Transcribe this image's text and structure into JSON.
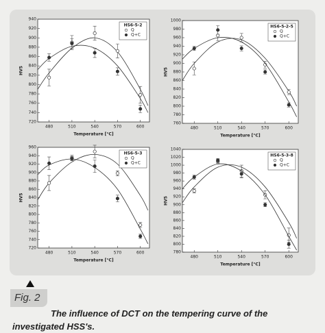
{
  "chart_data": [
    {
      "type": "scatter",
      "title": "HS6-5-2",
      "x_label": "Temperature [°C]",
      "y_label": "HV5",
      "x": [
        480,
        510,
        540,
        570,
        600
      ],
      "xlim": [
        465,
        612
      ],
      "xticks": [
        480,
        510,
        540,
        570,
        600
      ],
      "ylim": [
        720,
        940
      ],
      "yticks": [
        720,
        740,
        760,
        780,
        800,
        820,
        840,
        860,
        880,
        900,
        920,
        940
      ],
      "legend": "upper right",
      "series": [
        {
          "name": "Q",
          "color": "#333333",
          "marker": "open",
          "values": [
            815,
            890,
            910,
            872,
            778
          ],
          "errors": [
            18,
            15,
            15,
            15,
            18
          ],
          "fit": {
            "x": [
              465,
              480,
              510,
              540,
              570,
              600,
              610
            ],
            "values": [
              790,
              825,
              878,
              900,
              870,
              790,
              755
            ]
          }
        },
        {
          "name": "Q+C",
          "color": "#333333",
          "marker": "filled",
          "values": [
            858,
            888,
            868,
            828,
            748
          ],
          "errors": [
            8,
            10,
            10,
            8,
            8
          ],
          "fit": {
            "x": [
              465,
              480,
              510,
              540,
              570,
              600,
              610
            ],
            "values": [
              832,
              856,
              882,
              878,
              840,
              770,
              740
            ]
          }
        }
      ]
    },
    {
      "type": "scatter",
      "title": "HS6-5-2-5",
      "x_label": "Temperature [°C]",
      "y_label": "HV5",
      "x": [
        480,
        510,
        540,
        570,
        600
      ],
      "xlim": [
        465,
        612
      ],
      "xticks": [
        480,
        510,
        540,
        570,
        600
      ],
      "ylim": [
        760,
        1000
      ],
      "yticks": [
        760,
        780,
        800,
        820,
        840,
        860,
        880,
        900,
        920,
        940,
        960,
        980,
        1000
      ],
      "legend": "upper right",
      "series": [
        {
          "name": "Q",
          "color": "#333333",
          "marker": "open",
          "values": [
            888,
            965,
            960,
            897,
            833
          ],
          "errors": [
            15,
            12,
            10,
            8,
            6
          ],
          "fit": {
            "x": [
              465,
              480,
              510,
              540,
              570,
              600,
              610
            ],
            "values": [
              860,
              900,
              950,
              955,
              912,
              835,
              800
            ]
          }
        },
        {
          "name": "Q+C",
          "color": "#333333",
          "marker": "filled",
          "values": [
            935,
            978,
            935,
            880,
            803
          ],
          "errors": [
            5,
            10,
            6,
            5,
            5
          ],
          "fit": {
            "x": [
              465,
              480,
              510,
              540,
              570,
              600,
              610
            ],
            "values": [
              910,
              935,
              960,
              950,
              900,
              810,
              775
            ]
          }
        }
      ]
    },
    {
      "type": "scatter",
      "title": "HS6-5-3",
      "x_label": "Temperature [°C]",
      "y_label": "HV5",
      "x": [
        480,
        510,
        540,
        570,
        600
      ],
      "xlim": [
        465,
        612
      ],
      "xticks": [
        480,
        510,
        540,
        570,
        600
      ],
      "ylim": [
        720,
        960
      ],
      "yticks": [
        720,
        740,
        760,
        780,
        800,
        820,
        840,
        860,
        880,
        900,
        920,
        940,
        960
      ],
      "legend": "upper right",
      "series": [
        {
          "name": "Q",
          "color": "#333333",
          "marker": "open",
          "values": [
            875,
            935,
            950,
            898,
            775
          ],
          "errors": [
            18,
            6,
            15,
            6,
            6
          ],
          "fit": {
            "x": [
              465,
              480,
              510,
              540,
              570,
              600,
              610
            ],
            "values": [
              835,
              875,
              925,
              943,
              920,
              845,
              810
            ]
          }
        },
        {
          "name": "Q+C",
          "color": "#333333",
          "marker": "filled",
          "values": [
            922,
            933,
            915,
            838,
            748
          ],
          "errors": [
            15,
            5,
            15,
            8,
            5
          ],
          "fit": {
            "x": [
              465,
              480,
              510,
              540,
              570,
              600,
              610
            ],
            "values": [
              895,
              918,
              932,
              912,
              860,
              765,
              730
            ]
          }
        }
      ]
    },
    {
      "type": "scatter",
      "title": "HS6-5-3-8",
      "x_label": "Temperature [°C]",
      "y_label": "HV5",
      "x": [
        480,
        510,
        540,
        570,
        600
      ],
      "xlim": [
        465,
        612
      ],
      "xticks": [
        480,
        510,
        540,
        570,
        600
      ],
      "ylim": [
        780,
        1040
      ],
      "yticks": [
        780,
        800,
        820,
        840,
        860,
        880,
        900,
        920,
        940,
        960,
        980,
        1000,
        1020,
        1040
      ],
      "legend": "upper right",
      "series": [
        {
          "name": "Q",
          "color": "#333333",
          "marker": "open",
          "values": [
            935,
            1010,
            985,
            925,
            823
          ],
          "errors": [
            5,
            5,
            15,
            10,
            18
          ],
          "fit": {
            "x": [
              465,
              480,
              510,
              540,
              570,
              600,
              610
            ],
            "values": [
              905,
              945,
              995,
              995,
              945,
              855,
              815
            ]
          }
        },
        {
          "name": "Q+C",
          "color": "#333333",
          "marker": "filled",
          "values": [
            970,
            1012,
            978,
            900,
            800
          ],
          "errors": [
            5,
            5,
            10,
            5,
            10
          ],
          "fit": {
            "x": [
              465,
              480,
              510,
              540,
              570,
              600,
              610
            ],
            "values": [
              940,
              970,
              1003,
              985,
              925,
              820,
              785
            ]
          }
        }
      ]
    }
  ],
  "caption": {
    "label": "Fig. 2",
    "text": "The influence of DCT on the tempering curve of the investigated HSS's."
  }
}
